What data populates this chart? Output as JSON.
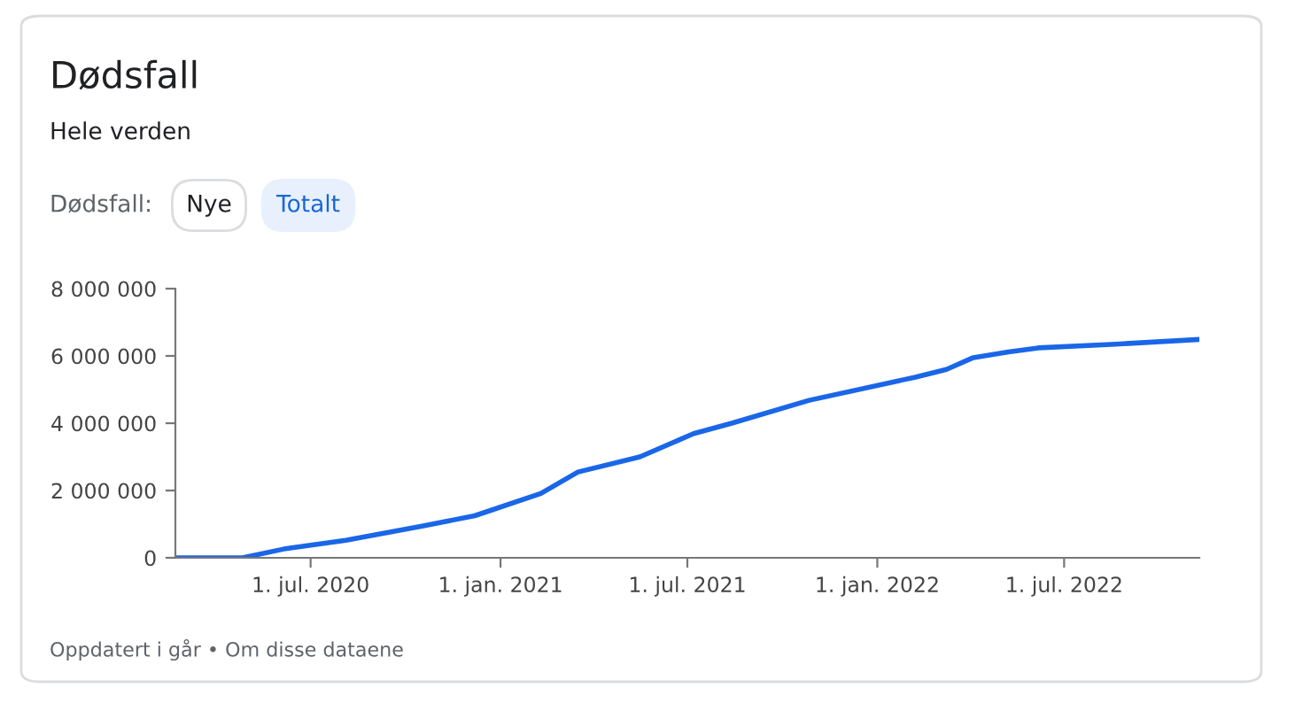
{
  "chart_data": {
    "type": "line",
    "title": "Dødsfall",
    "subtitle": "Hele verden",
    "annotations": [
      "Dødsfall:",
      "Nye",
      "Totalt",
      "Oppdatert i går • Om disse dataene"
    ],
    "x": [
      "2020-02-21",
      "2020-04-26",
      "2020-06-05",
      "2020-08-04",
      "2020-10-18",
      "2020-12-07",
      "2021-02-09",
      "2021-03-17",
      "2021-05-16",
      "2021-07-07",
      "2021-08-13",
      "2021-10-27",
      "2022-02-07",
      "2022-03-09",
      "2022-04-04",
      "2022-05-08",
      "2022-06-06",
      "2022-08-20",
      "2022-11-09"
    ],
    "series": [
      {
        "color": "#1a66e8",
        "values": [
          0,
          0,
          260000,
          520000,
          950000,
          1250000,
          1910000,
          2550000,
          3000000,
          3690000,
          4000000,
          4680000,
          5370000,
          5600000,
          5950000,
          6120000,
          6240000,
          6350000,
          6490000
        ]
      }
    ],
    "xlim": [
      "2020-02-21",
      "2022-11-09"
    ],
    "xticks": [
      {
        "value": "2020-07-01",
        "label": "1. jul. 2020"
      },
      {
        "value": "2021-01-01",
        "label": "1. jan. 2021"
      },
      {
        "value": "2021-07-01",
        "label": "1. jul. 2021"
      },
      {
        "value": "2022-01-01",
        "label": "1. jan. 2022"
      },
      {
        "value": "2022-07-01",
        "label": "1. jul. 2022"
      }
    ],
    "ylim": [
      0,
      8000000
    ],
    "yticks": [
      {
        "value": 0,
        "label": "0"
      },
      {
        "value": 2000000,
        "label": "2 000 000"
      },
      {
        "value": 4000000,
        "label": "4 000 000"
      },
      {
        "value": 6000000,
        "label": "6 000 000"
      },
      {
        "value": 8000000,
        "label": "8 000 000"
      }
    ],
    "grid": false,
    "marker": "none",
    "line_style": "solid"
  }
}
